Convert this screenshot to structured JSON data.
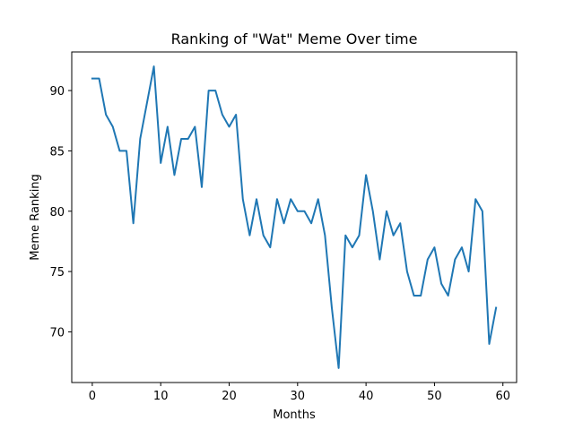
{
  "chart_data": {
    "type": "line",
    "title": "Ranking of \"Wat\" Meme Over time",
    "xlabel": "Months",
    "ylabel": "Meme Ranking",
    "xlim": [
      -3,
      62
    ],
    "ylim": [
      65.8,
      93.2
    ],
    "xticks": [
      0,
      10,
      20,
      30,
      40,
      50,
      60
    ],
    "yticks": [
      70,
      75,
      80,
      85,
      90
    ],
    "grid": false,
    "color": "#1f77b4",
    "series": [
      {
        "x": [
          0,
          1,
          2,
          3,
          4,
          5,
          6,
          7,
          8,
          9,
          10,
          11,
          12,
          13,
          14,
          15,
          16,
          17,
          18,
          19,
          20,
          21,
          22,
          23,
          24,
          25,
          26,
          27,
          28,
          29,
          30,
          31,
          32,
          33,
          34,
          35,
          36,
          37,
          38,
          39,
          40,
          41,
          42,
          43,
          44,
          45,
          46,
          47,
          48,
          49,
          50,
          51,
          52,
          53,
          54,
          55,
          56,
          57,
          58,
          59
        ],
        "values": [
          91,
          91,
          88,
          87,
          85,
          85,
          79,
          86,
          89,
          92,
          84,
          87,
          83,
          86,
          86,
          87,
          82,
          90,
          90,
          88,
          87,
          88,
          81,
          78,
          81,
          78,
          77,
          81,
          79,
          81,
          80,
          80,
          79,
          81,
          78,
          72,
          67,
          78,
          77,
          78,
          83,
          80,
          76,
          80,
          78,
          79,
          75,
          73,
          73,
          76,
          77,
          74,
          73,
          76,
          77,
          75,
          81,
          80,
          69,
          72
        ]
      }
    ]
  }
}
